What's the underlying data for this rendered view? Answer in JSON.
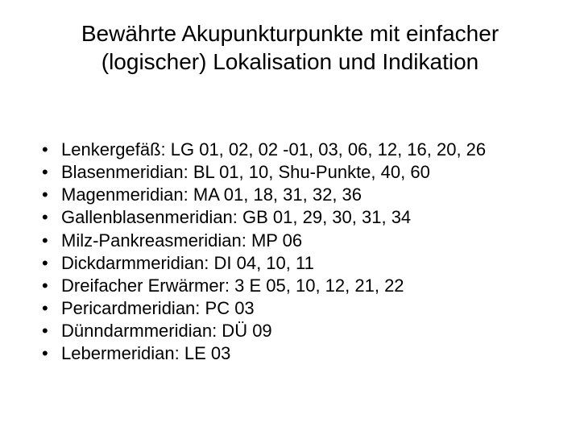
{
  "slide": {
    "title": "Bewährte Akupunkturpunkte mit einfacher (logischer) Lokalisation und Indikation",
    "bullets": [
      {
        "text": "Lenkergefäß: LG  01, 02, 02 -01, 03, 06, 12, 16, 20, 26"
      },
      {
        "text": "Blasenmeridian: BL 01, 10, Shu-Punkte, 40, 60"
      },
      {
        "text": "Magenmeridian: MA 01, 18, 31, 32, 36"
      },
      {
        "text": "Gallenblasenmeridian: GB 01, 29, 30, 31, 34"
      },
      {
        "text": "Milz-Pankreasmeridian: MP 06"
      },
      {
        "text": "Dickdarmmeridian: DI 04, 10, 11"
      },
      {
        "text": "Dreifacher Erwärmer: 3 E 05, 10, 12, 21, 22"
      },
      {
        "text": "Pericardmeridian: PC 03"
      },
      {
        "text": "Dünndarmmeridian: DÜ 09"
      },
      {
        "text": "Lebermeridian: LE 03"
      }
    ],
    "bullet_marker": "•",
    "colors": {
      "background": "#ffffff",
      "text": "#000000"
    },
    "typography": {
      "title_fontsize": 28,
      "body_fontsize": 22,
      "font_family": "Arial"
    }
  }
}
